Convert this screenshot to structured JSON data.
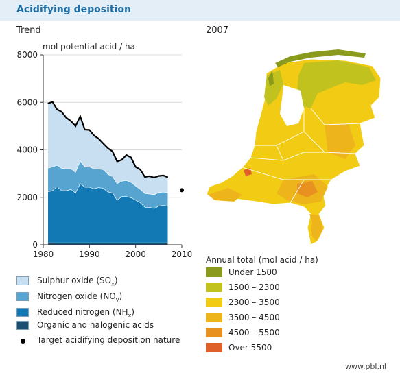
{
  "header": {
    "title": "Acidifying deposition"
  },
  "chart_data": {
    "type": "area",
    "subtitle": "Trend",
    "ylabel": "mol potential acid / ha",
    "xlim": [
      1980,
      2010
    ],
    "ylim": [
      0,
      8000
    ],
    "x_ticks": [
      "1980",
      "1990",
      "2000",
      "2010"
    ],
    "y_ticks": [
      "0",
      "2000",
      "4000",
      "6000",
      "8000"
    ],
    "x": [
      1981,
      1982,
      1983,
      1984,
      1985,
      1986,
      1987,
      1988,
      1989,
      1990,
      1991,
      1992,
      1993,
      1994,
      1995,
      1996,
      1997,
      1998,
      1999,
      2000,
      2001,
      2002,
      2003,
      2004,
      2005,
      2006,
      2007
    ],
    "series": [
      {
        "name": "Organic and halogenic acids",
        "color": "#1a4f72",
        "values": [
          80,
          80,
          80,
          80,
          80,
          80,
          80,
          80,
          80,
          80,
          80,
          80,
          80,
          80,
          80,
          80,
          80,
          80,
          80,
          80,
          80,
          80,
          80,
          80,
          80,
          80,
          80
        ]
      },
      {
        "name": "Reduced nitrogen (NHx)",
        "color": "#1279b5",
        "values": [
          2150,
          2200,
          2370,
          2200,
          2200,
          2250,
          2100,
          2500,
          2350,
          2350,
          2280,
          2330,
          2300,
          2150,
          2100,
          1800,
          1950,
          1950,
          1900,
          1800,
          1700,
          1500,
          1500,
          1450,
          1550,
          1580,
          1550
        ]
      },
      {
        "name": "Nitrogen oxide (NOy)",
        "color": "#58a4d1",
        "values": [
          1000,
          1000,
          900,
          940,
          920,
          880,
          870,
          950,
          850,
          850,
          840,
          780,
          790,
          740,
          700,
          700,
          650,
          680,
          650,
          600,
          560,
          580,
          560,
          580,
          570,
          560,
          560
        ]
      },
      {
        "name": "Sulphur oxide (SOx)",
        "color": "#c7dff0",
        "values": [
          2720,
          2740,
          2350,
          2380,
          2150,
          2000,
          1950,
          1880,
          1570,
          1560,
          1400,
          1280,
          1100,
          1100,
          1050,
          930,
          900,
          1070,
          1050,
          800,
          830,
          700,
          750,
          720,
          700,
          700,
          650
        ]
      }
    ],
    "target": {
      "name": "Target acidifying deposition nature",
      "x": 2010,
      "y": 2300
    },
    "map": {
      "subtitle": "2007",
      "legend_title": "Annual total (mol acid / ha)",
      "classes": [
        {
          "label": "Under 1500",
          "color": "#8a9a1c"
        },
        {
          "label": "1500 – 2300",
          "color": "#c2c21e"
        },
        {
          "label": "2300 – 3500",
          "color": "#f2cc14"
        },
        {
          "label": "3500 – 4500",
          "color": "#eeb41c"
        },
        {
          "label": "4500 – 5500",
          "color": "#e89020"
        },
        {
          "label": "Over 5500",
          "color": "#e0602a"
        }
      ]
    }
  },
  "legend_labels": {
    "sox": "Sulphur oxide (SO",
    "sox_sub": "x",
    "noy": "Nitrogen oxide (NO",
    "noy_sub": "y",
    "nhx": "Reduced nitrogen (NH",
    "nhx_sub": "x",
    "close": ")",
    "org": "Organic and halogenic acids",
    "target": "Target acidifying deposition nature"
  },
  "footer": {
    "source": "www.pbl.nl"
  }
}
